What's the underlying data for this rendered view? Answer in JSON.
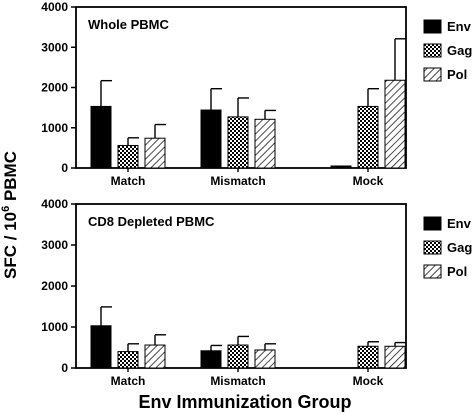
{
  "figure": {
    "ylabel_main": "SFC / 10",
    "ylabel_sup": "6",
    "ylabel_tail": " PBMC",
    "xlabel": "Env Immunization Group"
  },
  "chart_data": [
    {
      "type": "bar",
      "title": "Whole PBMC",
      "categories": [
        "Match",
        "Mismatch",
        "Mock"
      ],
      "series": [
        {
          "name": "Env",
          "pattern": "solid-black",
          "values": [
            1530,
            1440,
            50
          ],
          "errors": [
            640,
            530,
            0
          ]
        },
        {
          "name": "Gag",
          "pattern": "checker",
          "values": [
            560,
            1270,
            1530
          ],
          "errors": [
            190,
            470,
            440
          ]
        },
        {
          "name": "Pol",
          "pattern": "diagonal-hatch",
          "values": [
            740,
            1210,
            2180
          ],
          "errors": [
            340,
            220,
            1030
          ]
        }
      ],
      "ylim": [
        0,
        4000
      ],
      "yticks": [
        "0",
        "1000",
        "2000",
        "3000",
        "4000"
      ],
      "legend": "top-right-outside"
    },
    {
      "type": "bar",
      "title": "CD8 Depleted PBMC",
      "categories": [
        "Match",
        "Mismatch",
        "Mock"
      ],
      "series": [
        {
          "name": "Env",
          "pattern": "solid-black",
          "values": [
            1030,
            420,
            0
          ],
          "errors": [
            460,
            130,
            0
          ]
        },
        {
          "name": "Gag",
          "pattern": "checker",
          "values": [
            400,
            560,
            530
          ],
          "errors": [
            190,
            210,
            110
          ]
        },
        {
          "name": "Pol",
          "pattern": "diagonal-hatch",
          "values": [
            560,
            440,
            530
          ],
          "errors": [
            250,
            150,
            90
          ]
        }
      ],
      "ylim": [
        0,
        4000
      ],
      "yticks": [
        "0",
        "1000",
        "2000",
        "3000",
        "4000"
      ],
      "legend": "top-right-outside"
    }
  ]
}
